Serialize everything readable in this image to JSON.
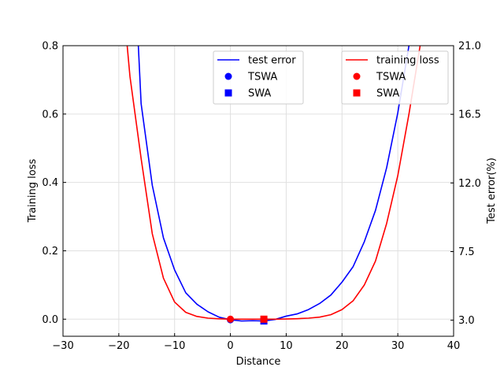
{
  "chart_data": {
    "type": "line",
    "xlabel": "Distance",
    "ylabel_left": "Training loss",
    "ylabel_right": "Test error(%)",
    "xlim": [
      -30,
      40
    ],
    "ylim_left": [
      -0.05,
      0.8
    ],
    "ylim_right": [
      1.95,
      21.0
    ],
    "x_ticks": [
      -30,
      -20,
      -10,
      0,
      10,
      20,
      30,
      40
    ],
    "x_tick_labels": [
      "−30",
      "−20",
      "−10",
      "0",
      "10",
      "20",
      "30",
      "40"
    ],
    "y_left_ticks": [
      0.0,
      0.2,
      0.4,
      0.6,
      0.8
    ],
    "y_left_tick_labels": [
      "0.0",
      "0.2",
      "0.4",
      "0.6",
      "0.8"
    ],
    "y_right_ticks": [
      3.0,
      7.5,
      12.0,
      16.5,
      21.0
    ],
    "y_right_tick_labels": [
      "3.0",
      "7.5",
      "12.0",
      "16.5",
      "21.0"
    ],
    "grid": true,
    "series": [
      {
        "name": "test error",
        "axis": "right",
        "color": "#0000ff",
        "x": [
          -16.5,
          -16,
          -14,
          -12,
          -10,
          -8,
          -6,
          -4,
          -2,
          0,
          2,
          4,
          6,
          8,
          10,
          12,
          14,
          16,
          18,
          20,
          22,
          24,
          26,
          28,
          30,
          32
        ],
        "y": [
          21.0,
          17.2,
          11.85,
          8.4,
          6.3,
          4.8,
          4.05,
          3.55,
          3.2,
          3.03,
          2.95,
          2.97,
          2.95,
          3.05,
          3.27,
          3.42,
          3.7,
          4.1,
          4.65,
          5.5,
          6.52,
          8.15,
          10.2,
          13.0,
          16.6,
          21.0
        ]
      },
      {
        "name": "training loss",
        "axis": "left",
        "color": "#ff0000",
        "x": [
          -18.5,
          -18,
          -16,
          -14,
          -12,
          -10,
          -8,
          -6,
          -4,
          -2,
          0,
          2,
          4,
          6,
          8,
          10,
          12,
          14,
          16,
          18,
          20,
          22,
          24,
          26,
          28,
          30,
          32,
          34
        ],
        "y": [
          0.8,
          0.71,
          0.47,
          0.25,
          0.12,
          0.05,
          0.02,
          0.008,
          0.003,
          0.001,
          0.0,
          0.0,
          0.0,
          0.0,
          0.0,
          0.0005,
          0.0015,
          0.003,
          0.006,
          0.013,
          0.028,
          0.054,
          0.1,
          0.17,
          0.28,
          0.42,
          0.6,
          0.8
        ]
      }
    ],
    "markers": [
      {
        "name": "TSWA",
        "shape": "circle",
        "color": "#0000ff",
        "axis": "right",
        "x": 0,
        "y": 3.03
      },
      {
        "name": "SWA",
        "shape": "square",
        "color": "#0000ff",
        "axis": "right",
        "x": 6,
        "y": 2.95
      },
      {
        "name": "TSWA",
        "shape": "circle",
        "color": "#ff0000",
        "axis": "left",
        "x": 0,
        "y": 0.0
      },
      {
        "name": "SWA",
        "shape": "square",
        "color": "#ff0000",
        "axis": "left",
        "x": 6,
        "y": 0.0
      }
    ],
    "legends": [
      {
        "placement": "top-center",
        "entries": [
          {
            "label": "test error",
            "kind": "line",
            "color": "#0000ff"
          },
          {
            "label": "TSWA",
            "kind": "circle",
            "color": "#0000ff"
          },
          {
            "label": "SWA",
            "kind": "square",
            "color": "#0000ff"
          }
        ]
      },
      {
        "placement": "top-right",
        "entries": [
          {
            "label": "training loss",
            "kind": "line",
            "color": "#ff0000"
          },
          {
            "label": "TSWA",
            "kind": "circle",
            "color": "#ff0000"
          },
          {
            "label": "SWA",
            "kind": "square",
            "color": "#ff0000"
          }
        ]
      }
    ]
  }
}
